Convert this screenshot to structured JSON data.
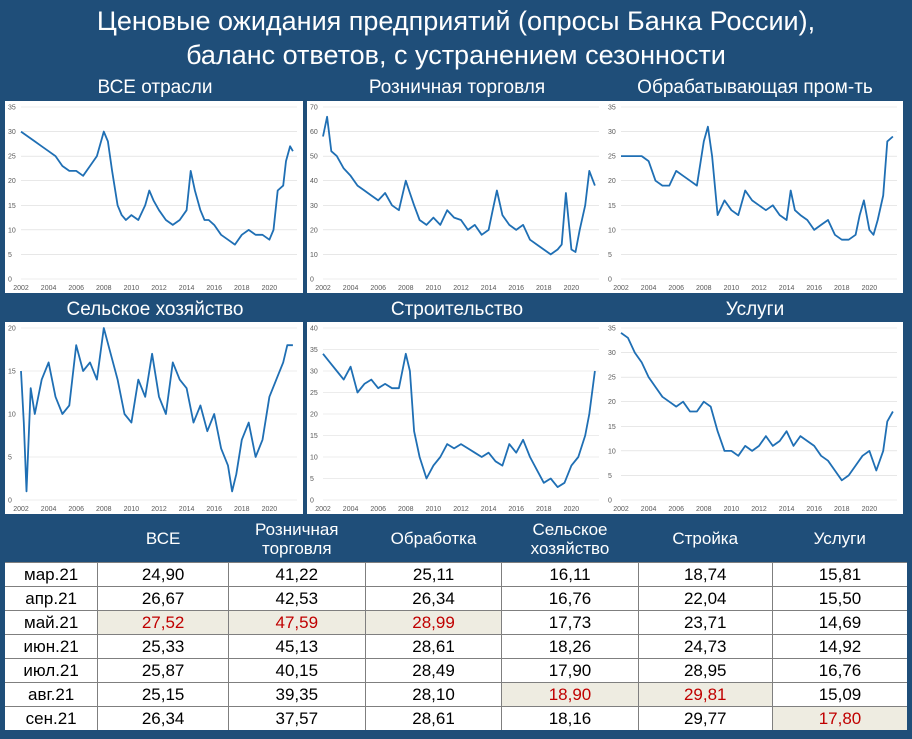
{
  "title_line1": "Ценовые ожидания предприятий (опросы Банка России),",
  "title_line2": "баланс ответов, с устранением сезонности",
  "colors": {
    "background": "#1f4e79",
    "line": "#1f6fb4",
    "highlight_bg": "#eeece1",
    "highlight_text": "#c00000"
  },
  "chart_data": [
    {
      "type": "line",
      "title": "ВСЕ отрасли",
      "ylim": [
        0,
        35
      ],
      "yticks": [
        0,
        5,
        10,
        15,
        20,
        25,
        30,
        35
      ],
      "xlim": [
        2002,
        2022
      ],
      "xticks": [
        2002,
        2004,
        2006,
        2008,
        2010,
        2012,
        2014,
        2016,
        2018,
        2020
      ],
      "series": [
        {
          "x": [
            2002,
            2002.5,
            2003,
            2003.5,
            2004,
            2004.5,
            2005,
            2005.5,
            2006,
            2006.5,
            2007,
            2007.5,
            2008,
            2008.3,
            2008.6,
            2009,
            2009.3,
            2009.6,
            2010,
            2010.5,
            2011,
            2011.3,
            2011.6,
            2012,
            2012.5,
            2013,
            2013.5,
            2014,
            2014.3,
            2014.6,
            2015,
            2015.3,
            2015.6,
            2016,
            2016.5,
            2017,
            2017.5,
            2018,
            2018.5,
            2019,
            2019.5,
            2020,
            2020.3,
            2020.6,
            2021,
            2021.2,
            2021.5,
            2021.7
          ],
          "y": [
            30,
            29,
            28,
            27,
            26,
            25,
            23,
            22,
            22,
            21,
            23,
            25,
            30,
            28,
            22,
            15,
            13,
            12,
            13,
            12,
            15,
            18,
            16,
            14,
            12,
            11,
            12,
            14,
            22,
            18,
            14,
            12,
            12,
            11,
            9,
            8,
            7,
            9,
            10,
            9,
            9,
            8,
            10,
            18,
            19,
            24,
            27,
            26
          ]
        }
      ]
    },
    {
      "type": "line",
      "title": "Розничная торговля",
      "ylim": [
        0,
        70
      ],
      "yticks": [
        0,
        10,
        20,
        30,
        40,
        50,
        60,
        70
      ],
      "xlim": [
        2002,
        2022
      ],
      "xticks": [
        2002,
        2004,
        2006,
        2008,
        2010,
        2012,
        2014,
        2016,
        2018,
        2020
      ],
      "series": [
        {
          "x": [
            2002,
            2002.3,
            2002.6,
            2003,
            2003.5,
            2004,
            2004.5,
            2005,
            2005.5,
            2006,
            2006.5,
            2007,
            2007.5,
            2008,
            2008.3,
            2008.6,
            2009,
            2009.5,
            2010,
            2010.5,
            2011,
            2011.5,
            2012,
            2012.5,
            2013,
            2013.5,
            2014,
            2014.3,
            2014.6,
            2015,
            2015.5,
            2016,
            2016.5,
            2017,
            2017.5,
            2018,
            2018.5,
            2019,
            2019.3,
            2019.6,
            2020,
            2020.3,
            2020.6,
            2021,
            2021.3,
            2021.7
          ],
          "y": [
            58,
            66,
            52,
            50,
            45,
            42,
            38,
            36,
            34,
            32,
            35,
            30,
            28,
            40,
            35,
            30,
            24,
            22,
            25,
            22,
            28,
            25,
            24,
            20,
            22,
            18,
            20,
            28,
            36,
            26,
            22,
            20,
            22,
            16,
            14,
            12,
            10,
            12,
            14,
            35,
            12,
            11,
            20,
            30,
            44,
            38
          ]
        }
      ]
    },
    {
      "type": "line",
      "title": "Обрабатывающая пром-ть",
      "ylim": [
        0,
        35
      ],
      "yticks": [
        0,
        5,
        10,
        15,
        20,
        25,
        30,
        35
      ],
      "xlim": [
        2002,
        2022
      ],
      "xticks": [
        2002,
        2004,
        2006,
        2008,
        2010,
        2012,
        2014,
        2016,
        2018,
        2020
      ],
      "series": [
        {
          "x": [
            2002,
            2002.5,
            2003,
            2003.5,
            2004,
            2004.5,
            2005,
            2005.5,
            2006,
            2006.5,
            2007,
            2007.5,
            2008,
            2008.3,
            2008.6,
            2009,
            2009.5,
            2010,
            2010.5,
            2011,
            2011.5,
            2012,
            2012.5,
            2013,
            2013.5,
            2014,
            2014.3,
            2014.6,
            2015,
            2015.5,
            2016,
            2016.5,
            2017,
            2017.5,
            2018,
            2018.5,
            2019,
            2019.3,
            2019.6,
            2020,
            2020.3,
            2020.6,
            2021,
            2021.3,
            2021.7
          ],
          "y": [
            25,
            25,
            25,
            25,
            24,
            20,
            19,
            19,
            22,
            21,
            20,
            19,
            28,
            31,
            25,
            13,
            16,
            14,
            13,
            18,
            16,
            15,
            14,
            15,
            13,
            12,
            18,
            14,
            13,
            12,
            10,
            11,
            12,
            9,
            8,
            8,
            9,
            13,
            16,
            10,
            9,
            12,
            17,
            28,
            29
          ]
        }
      ]
    },
    {
      "type": "line",
      "title": "Сельское хозяйство",
      "ylim": [
        0,
        20
      ],
      "yticks": [
        0,
        5,
        10,
        15,
        20
      ],
      "xlim": [
        2002,
        2022
      ],
      "xticks": [
        2002,
        2004,
        2006,
        2008,
        2010,
        2012,
        2014,
        2016,
        2018,
        2020
      ],
      "series": [
        {
          "x": [
            2002,
            2002.2,
            2002.4,
            2002.7,
            2003,
            2003.5,
            2004,
            2004.5,
            2005,
            2005.5,
            2006,
            2006.5,
            2007,
            2007.5,
            2008,
            2008.5,
            2009,
            2009.5,
            2010,
            2010.5,
            2011,
            2011.5,
            2012,
            2012.5,
            2013,
            2013.5,
            2014,
            2014.5,
            2015,
            2015.5,
            2016,
            2016.5,
            2017,
            2017.3,
            2017.6,
            2018,
            2018.5,
            2019,
            2019.5,
            2020,
            2020.5,
            2021,
            2021.3,
            2021.7
          ],
          "y": [
            15,
            9,
            1,
            13,
            10,
            14,
            16,
            12,
            10,
            11,
            18,
            15,
            16,
            14,
            20,
            17,
            14,
            10,
            9,
            14,
            12,
            17,
            12,
            10,
            16,
            14,
            13,
            9,
            11,
            8,
            10,
            6,
            4,
            1,
            3,
            7,
            9,
            5,
            7,
            12,
            14,
            16,
            18,
            18
          ]
        }
      ]
    },
    {
      "type": "line",
      "title": "Строительство",
      "ylim": [
        0,
        40
      ],
      "yticks": [
        0,
        5,
        10,
        15,
        20,
        25,
        30,
        35,
        40
      ],
      "xlim": [
        2002,
        2022
      ],
      "xticks": [
        2002,
        2004,
        2006,
        2008,
        2010,
        2012,
        2014,
        2016,
        2018,
        2020
      ],
      "series": [
        {
          "x": [
            2002,
            2002.5,
            2003,
            2003.5,
            2004,
            2004.5,
            2005,
            2005.5,
            2006,
            2006.5,
            2007,
            2007.5,
            2008,
            2008.3,
            2008.6,
            2009,
            2009.5,
            2010,
            2010.5,
            2011,
            2011.5,
            2012,
            2012.5,
            2013,
            2013.5,
            2014,
            2014.5,
            2015,
            2015.5,
            2016,
            2016.5,
            2017,
            2017.5,
            2018,
            2018.5,
            2019,
            2019.5,
            2020,
            2020.5,
            2021,
            2021.3,
            2021.7
          ],
          "y": [
            34,
            32,
            30,
            28,
            31,
            25,
            27,
            28,
            26,
            27,
            26,
            26,
            34,
            30,
            16,
            10,
            5,
            8,
            10,
            13,
            12,
            13,
            12,
            11,
            10,
            11,
            9,
            8,
            13,
            11,
            14,
            10,
            7,
            4,
            5,
            3,
            4,
            8,
            10,
            15,
            20,
            30
          ]
        }
      ]
    },
    {
      "type": "line",
      "title": "Услуги",
      "ylim": [
        0,
        35
      ],
      "yticks": [
        0,
        5,
        10,
        15,
        20,
        25,
        30,
        35
      ],
      "xlim": [
        2002,
        2022
      ],
      "xticks": [
        2002,
        2004,
        2006,
        2008,
        2010,
        2012,
        2014,
        2016,
        2018,
        2020
      ],
      "series": [
        {
          "x": [
            2002,
            2002.5,
            2003,
            2003.5,
            2004,
            2004.5,
            2005,
            2005.5,
            2006,
            2006.5,
            2007,
            2007.5,
            2008,
            2008.5,
            2009,
            2009.5,
            2010,
            2010.5,
            2011,
            2011.5,
            2012,
            2012.5,
            2013,
            2013.5,
            2014,
            2014.5,
            2015,
            2015.5,
            2016,
            2016.5,
            2017,
            2017.5,
            2018,
            2018.5,
            2019,
            2019.5,
            2020,
            2020.5,
            2021,
            2021.3,
            2021.7
          ],
          "y": [
            34,
            33,
            30,
            28,
            25,
            23,
            21,
            20,
            19,
            20,
            18,
            18,
            20,
            19,
            14,
            10,
            10,
            9,
            11,
            10,
            11,
            13,
            11,
            12,
            14,
            11,
            13,
            12,
            11,
            9,
            8,
            6,
            4,
            5,
            7,
            9,
            10,
            6,
            10,
            16,
            18
          ]
        }
      ]
    }
  ],
  "table": {
    "headers": [
      "",
      "ВСЕ",
      "Розничная торговля",
      "Обработка",
      "Сельское хозяйство",
      "Стройка",
      "Услуги"
    ],
    "rows": [
      {
        "label": "мар.21",
        "values": [
          "24,90",
          "41,22",
          "25,11",
          "16,11",
          "18,74",
          "15,81"
        ],
        "hl": []
      },
      {
        "label": "апр.21",
        "values": [
          "26,67",
          "42,53",
          "26,34",
          "16,76",
          "22,04",
          "15,50"
        ],
        "hl": []
      },
      {
        "label": "май.21",
        "values": [
          "27,52",
          "47,59",
          "28,99",
          "17,73",
          "23,71",
          "14,69"
        ],
        "hl": [
          0,
          1,
          2
        ]
      },
      {
        "label": "июн.21",
        "values": [
          "25,33",
          "45,13",
          "28,61",
          "18,26",
          "24,73",
          "14,92"
        ],
        "hl": []
      },
      {
        "label": "июл.21",
        "values": [
          "25,87",
          "40,15",
          "28,49",
          "17,90",
          "28,95",
          "16,76"
        ],
        "hl": []
      },
      {
        "label": "авг.21",
        "values": [
          "25,15",
          "39,35",
          "28,10",
          "18,90",
          "29,81",
          "15,09"
        ],
        "hl": [
          3,
          4
        ]
      },
      {
        "label": "сен.21",
        "values": [
          "26,34",
          "37,57",
          "28,61",
          "18,16",
          "29,77",
          "17,80"
        ],
        "hl": [
          5
        ]
      }
    ]
  }
}
